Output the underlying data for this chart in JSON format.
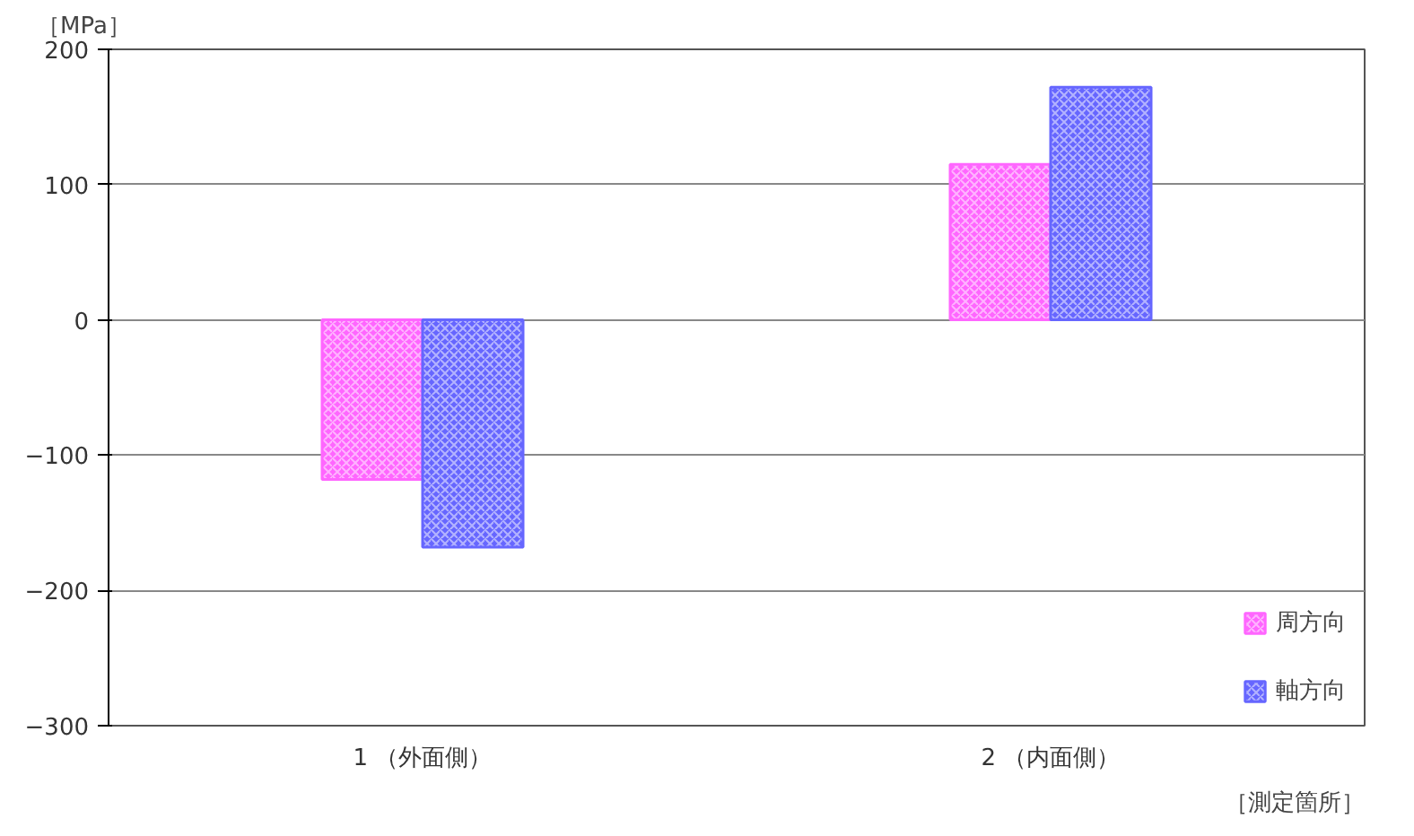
{
  "chart_data": {
    "type": "bar",
    "ylabel": "［MPa］",
    "xlabel": "［測定箇所］",
    "categories": [
      "1 （外面側）",
      "2 （内面側）"
    ],
    "series": [
      {
        "name": "周方向",
        "color": "#ff66ff",
        "values": [
          -118,
          115
        ]
      },
      {
        "name": "軸方向",
        "color": "#6666ff",
        "values": [
          -168,
          172
        ]
      }
    ],
    "ylim": [
      -300,
      200
    ],
    "yticks": [
      -300,
      -200,
      -100,
      0,
      100,
      200
    ],
    "grid": "y",
    "legend": "bottom right"
  }
}
